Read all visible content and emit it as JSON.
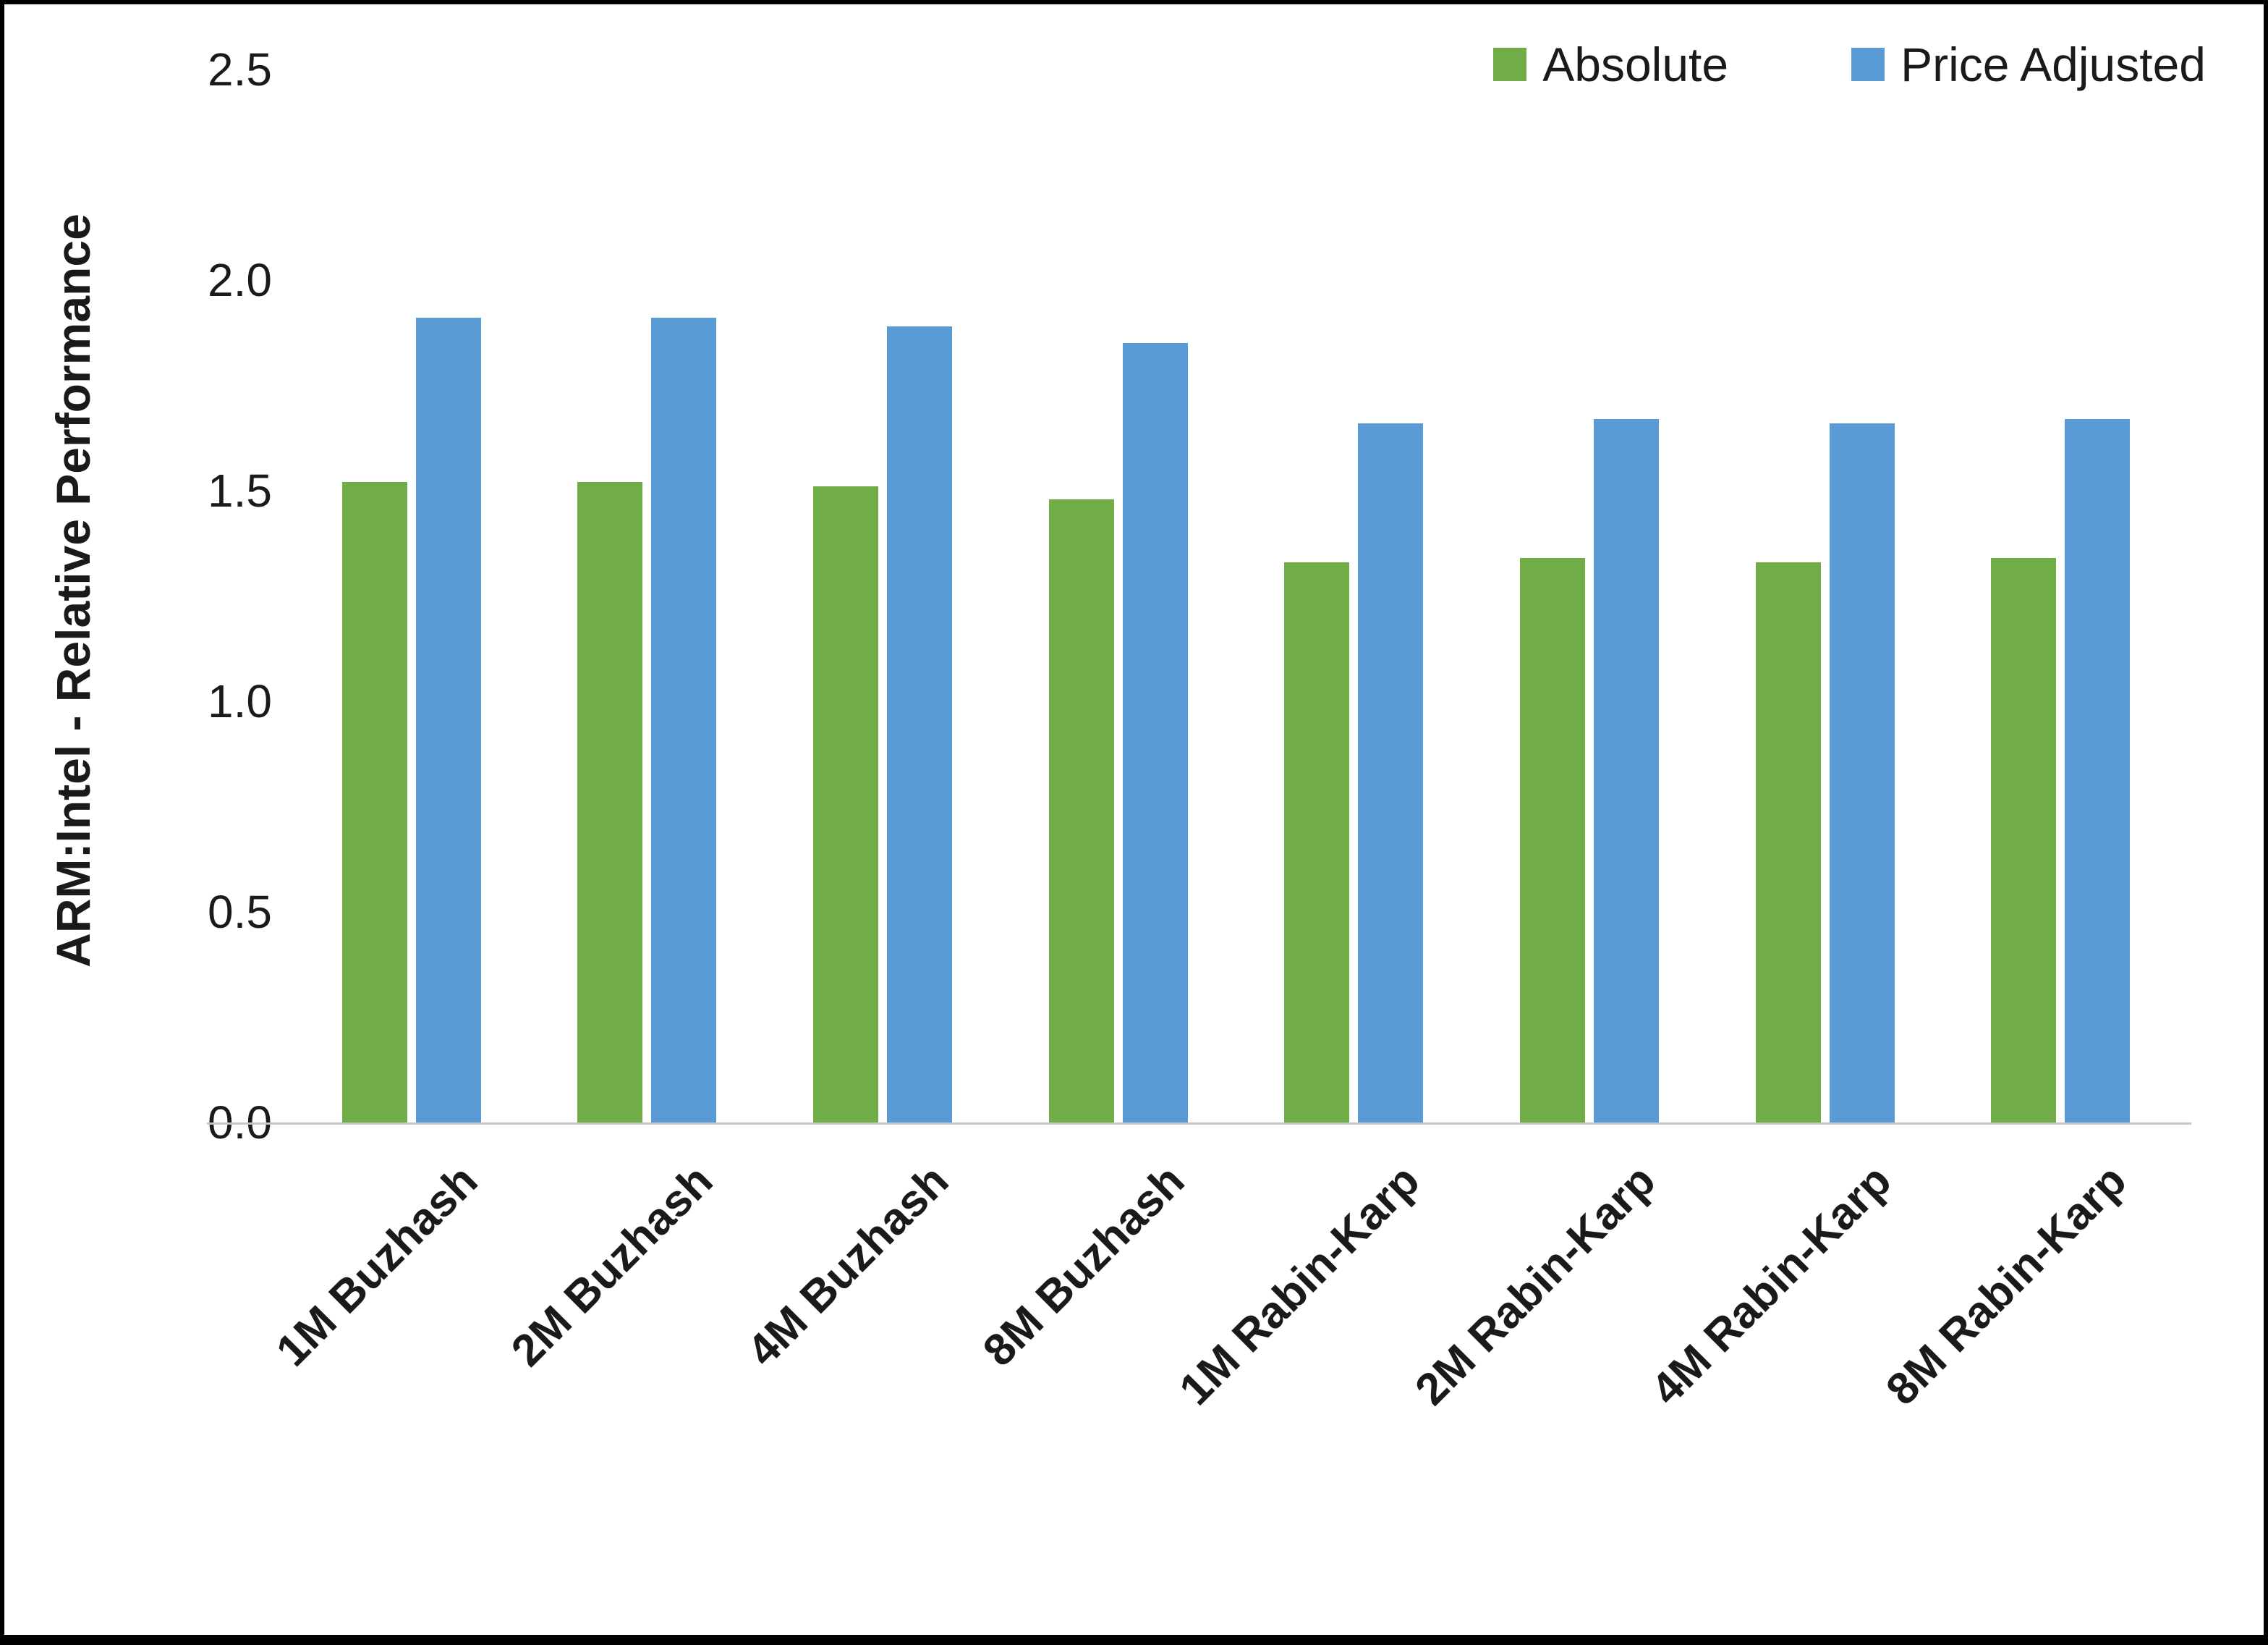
{
  "chart_data": {
    "type": "bar",
    "title": "",
    "xlabel": "",
    "ylabel": "ARM:Intel - Relative Performance",
    "ylim": [
      0,
      2.5
    ],
    "ytick_labels": [
      "0.0",
      "0.5",
      "1.0",
      "1.5",
      "2.0",
      "2.5"
    ],
    "grid": false,
    "legend_position": "top-right",
    "categories": [
      "1M Buzhash",
      "2M Buzhash",
      "4M Buzhash",
      "8M Buzhash",
      "1M Rabin-Karp",
      "2M Rabin-Karp",
      "4M Rabin-Karp",
      "8M Rabin-Karp"
    ],
    "series": [
      {
        "name": "Absolute",
        "color": "#70AD47",
        "values": [
          1.52,
          1.52,
          1.51,
          1.48,
          1.33,
          1.34,
          1.33,
          1.34
        ]
      },
      {
        "name": "Price Adjusted",
        "color": "#5B9BD5",
        "values": [
          1.91,
          1.91,
          1.89,
          1.85,
          1.66,
          1.67,
          1.66,
          1.67
        ]
      }
    ]
  }
}
